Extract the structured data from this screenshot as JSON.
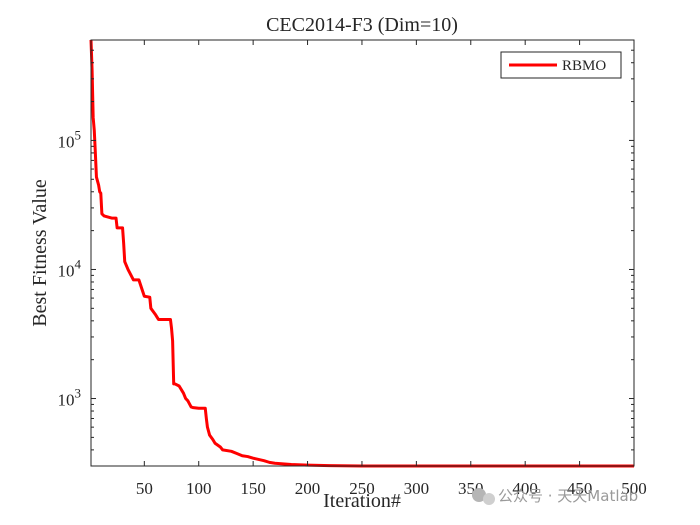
{
  "chart_data": {
    "type": "line",
    "title": "CEC2014-F3 (Dim=10)",
    "xlabel": "Iteration#",
    "ylabel": "Best Fitness Value",
    "xlim": [
      1,
      500
    ],
    "ylim": [
      300,
      600000
    ],
    "yscale": "log",
    "grid": false,
    "legend_position": "top-right",
    "x_ticks": [
      {
        "value": 50,
        "label": "50"
      },
      {
        "value": 100,
        "label": "100"
      },
      {
        "value": 150,
        "label": "150"
      },
      {
        "value": 200,
        "label": "200"
      },
      {
        "value": 250,
        "label": "250"
      },
      {
        "value": 300,
        "label": "300"
      },
      {
        "value": 350,
        "label": "350"
      },
      {
        "value": 400,
        "label": "400"
      },
      {
        "value": 450,
        "label": "450"
      },
      {
        "value": 500,
        "label": "500"
      }
    ],
    "y_ticks": [
      {
        "value": 1000,
        "base": "10",
        "exp": "3"
      },
      {
        "value": 10000,
        "base": "10",
        "exp": "4"
      },
      {
        "value": 100000,
        "base": "10",
        "exp": "5"
      }
    ],
    "series": [
      {
        "name": "RBMO",
        "color": "#ff0000",
        "x": [
          1,
          2,
          3,
          4,
          5,
          6,
          8,
          9,
          10,
          11,
          13,
          20,
          24,
          25,
          30,
          31,
          32,
          35,
          40,
          41,
          45,
          50,
          55,
          56,
          60,
          63,
          65,
          66,
          74,
          75,
          76,
          77,
          78,
          82,
          86,
          88,
          90,
          93,
          95,
          100,
          106,
          107,
          108,
          110,
          113,
          115,
          120,
          122,
          130,
          135,
          140,
          145,
          150,
          160,
          165,
          170,
          185,
          200,
          220,
          250,
          300,
          500
        ],
        "values": [
          600000,
          350000,
          150000,
          120000,
          80000,
          52000,
          45000,
          40000,
          39000,
          27000,
          26000,
          25000,
          25000,
          21000,
          21000,
          16000,
          11500,
          10000,
          8300,
          8300,
          8300,
          6200,
          6100,
          5000,
          4500,
          4100,
          4100,
          4100,
          4100,
          3500,
          2800,
          1300,
          1300,
          1250,
          1100,
          1000,
          960,
          860,
          850,
          840,
          840,
          700,
          600,
          520,
          480,
          450,
          420,
          400,
          390,
          375,
          360,
          355,
          345,
          330,
          320,
          315,
          308,
          305,
          302,
          300,
          300,
          300
        ]
      }
    ]
  },
  "watermark": {
    "text": "公众号 · 天天Matlab"
  }
}
